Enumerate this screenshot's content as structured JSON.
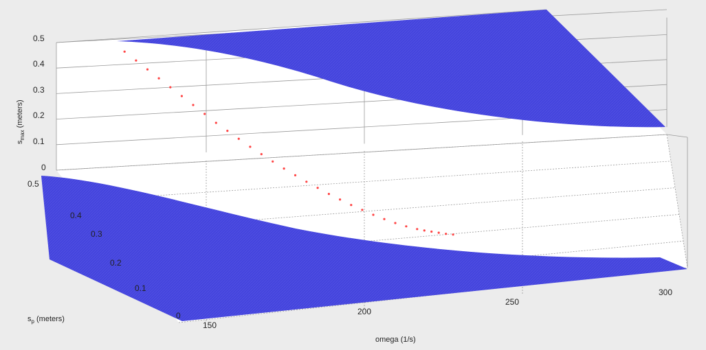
{
  "chart_data": {
    "type": "3d-surface",
    "title": "",
    "xlabel": "omega (1/s)",
    "ylabel": "s_p (meters)",
    "ylabel_main": "s",
    "ylabel_sub": "p",
    "ylabel_rest": " (meters)",
    "zlabel_main": "s",
    "zlabel_sub": "max",
    "zlabel_rest": " (meters)",
    "xlim": [
      150,
      315
    ],
    "ylim": [
      0,
      0.5
    ],
    "zlim": [
      0,
      0.5
    ],
    "x_ticks": [
      "150",
      "200",
      "250",
      "300"
    ],
    "y_ticks": [
      "0",
      "0.1",
      "0.2",
      "0.3",
      "0.4",
      "0.5"
    ],
    "z_ticks": [
      "0",
      "0.1",
      "0.2",
      "0.3",
      "0.4",
      "0.5"
    ],
    "grid": true,
    "surface_color": "#4444dd",
    "marker_color": "#ff4444",
    "series": [
      {
        "kind": "red-markers",
        "x": [
          152,
          155,
          158,
          161,
          164,
          167,
          170,
          173,
          176,
          179,
          182,
          185,
          188,
          191,
          194,
          197,
          200,
          203,
          206,
          209,
          212,
          215,
          218,
          221,
          224,
          227,
          230,
          232,
          234,
          236,
          238,
          240
        ],
        "z": [
          0.48,
          0.455,
          0.43,
          0.405,
          0.38,
          0.355,
          0.33,
          0.305,
          0.28,
          0.258,
          0.236,
          0.214,
          0.194,
          0.174,
          0.155,
          0.137,
          0.12,
          0.104,
          0.088,
          0.074,
          0.06,
          0.048,
          0.036,
          0.026,
          0.017,
          0.01,
          0.005,
          0.003,
          0.002,
          0.001,
          0.0,
          0.0
        ]
      }
    ]
  }
}
